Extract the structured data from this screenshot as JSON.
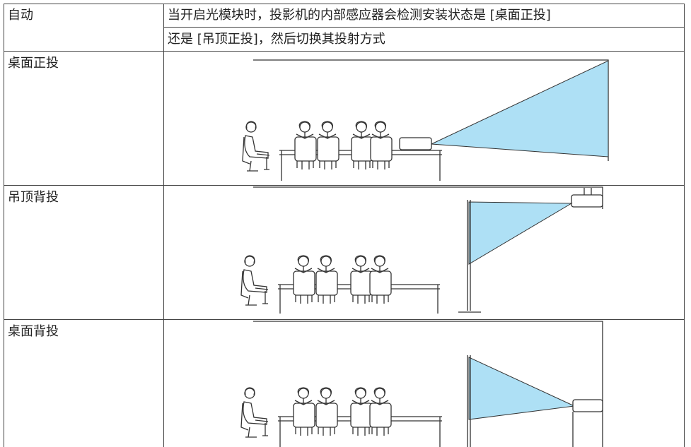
{
  "table": {
    "rows": [
      {
        "label": "自动",
        "description": [
          "当开启光模块时，投影机的内部感应器会检测安装状态是 [桌面正投]",
          "还是 [吊顶正投]，然后切换其投射方式"
        ]
      },
      {
        "label": "桌面正投"
      },
      {
        "label": "吊顶背投"
      },
      {
        "label": "桌面背投"
      }
    ]
  }
}
